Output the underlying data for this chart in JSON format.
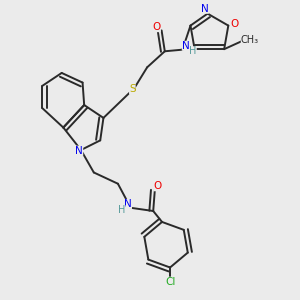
{
  "bg_color": "#ebebeb",
  "bond_color": "#2a2a2a",
  "atom_colors": {
    "N": "#0000ee",
    "O": "#ee0000",
    "S": "#bbaa00",
    "Cl": "#22aa22",
    "C": "#2a2a2a",
    "H": "#559999"
  },
  "font_size": 7.5,
  "line_width": 1.4,
  "figsize": [
    3.0,
    3.0
  ],
  "dpi": 100
}
